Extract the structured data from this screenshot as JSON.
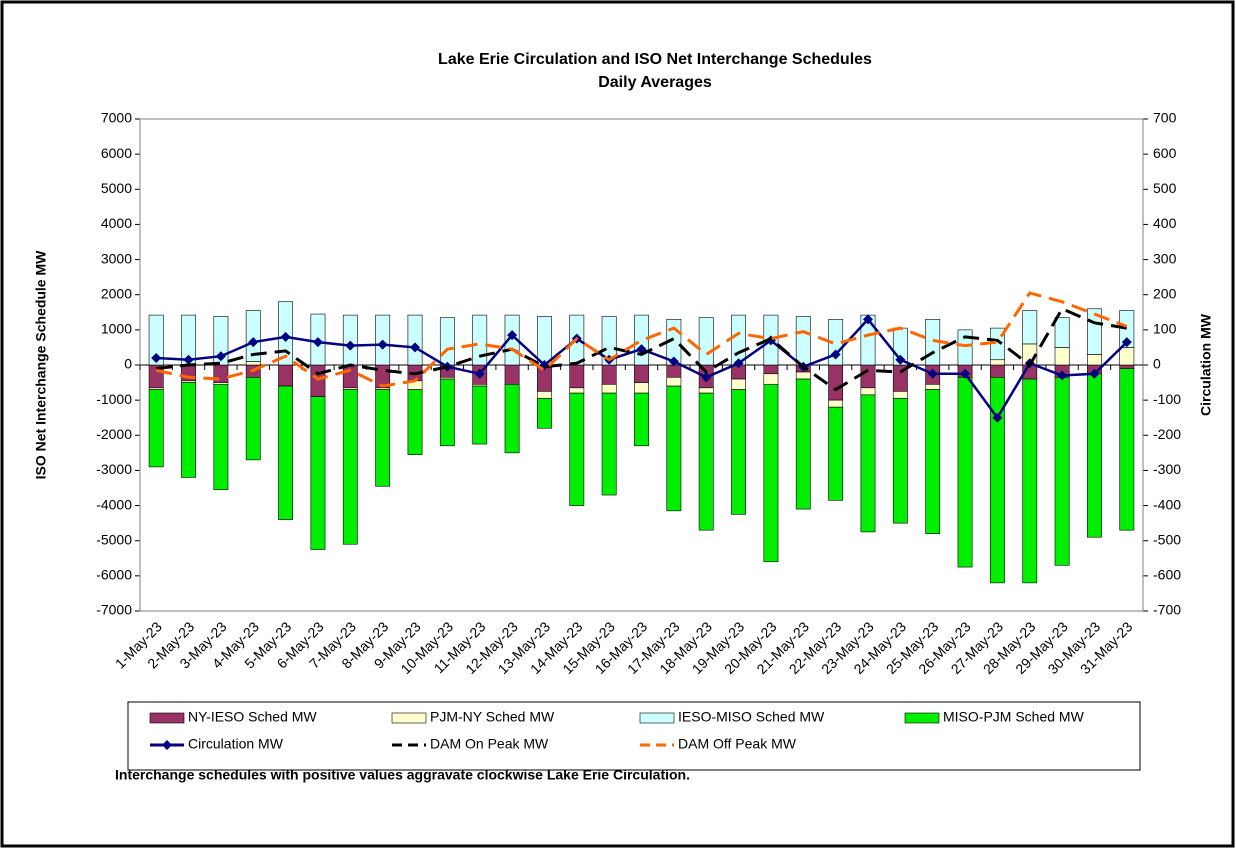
{
  "chart_data": {
    "type": "bar",
    "title": "Lake Erie Circulation and ISO Net Interchange Schedules",
    "subtitle": "Daily Averages",
    "y_label": "ISO Net Interchange Schedule MW",
    "y2_label": "Circulation MW",
    "note": "Interchange schedules with positive values aggravate clockwise Lake Erie Circulation.",
    "categories": [
      "1-May-23",
      "2-May-23",
      "3-May-23",
      "4-May-23",
      "5-May-23",
      "6-May-23",
      "7-May-23",
      "8-May-23",
      "9-May-23",
      "10-May-23",
      "11-May-23",
      "12-May-23",
      "13-May-23",
      "14-May-23",
      "15-May-23",
      "16-May-23",
      "17-May-23",
      "18-May-23",
      "19-May-23",
      "20-May-23",
      "21-May-23",
      "22-May-23",
      "23-May-23",
      "24-May-23",
      "25-May-23",
      "26-May-23",
      "27-May-23",
      "28-May-23",
      "29-May-23",
      "30-May-23",
      "31-May-23"
    ],
    "ylim": [
      -7000,
      7000
    ],
    "yticks": [
      -7000,
      -6000,
      -5000,
      -4000,
      -3000,
      -2000,
      -1000,
      0,
      1000,
      2000,
      3000,
      4000,
      5000,
      6000,
      7000
    ],
    "y2lim": [
      -700,
      700
    ],
    "y2ticks": [
      -700,
      -600,
      -500,
      -400,
      -300,
      -200,
      -100,
      0,
      100,
      200,
      300,
      400,
      500,
      600,
      700
    ],
    "stacked": true,
    "series": [
      {
        "name": "NY-IESO Sched MW",
        "color": "#993366",
        "values": [
          -650,
          -450,
          -500,
          -350,
          -600,
          -900,
          -650,
          -650,
          -450,
          -350,
          -550,
          -550,
          -750,
          -650,
          -550,
          -500,
          -350,
          -650,
          -400,
          -250,
          -200,
          -1000,
          -650,
          -750,
          -550,
          -350,
          -350,
          -400,
          -350,
          -250,
          -100
        ]
      },
      {
        "name": "PJM-NY Sched MW",
        "color": "#ffffcc",
        "values": [
          -50,
          -50,
          -50,
          100,
          0,
          0,
          -50,
          -50,
          -250,
          -50,
          -50,
          0,
          -200,
          -150,
          -250,
          -300,
          -250,
          -150,
          -300,
          -300,
          -200,
          -200,
          -200,
          -200,
          -150,
          0,
          150,
          600,
          500,
          300,
          500
        ]
      },
      {
        "name": "IESO-MISO Sched MW",
        "color": "#ccffff",
        "values": [
          1420,
          1420,
          1380,
          1450,
          1800,
          1450,
          1420,
          1420,
          1420,
          1350,
          1420,
          1420,
          1380,
          1420,
          1380,
          1420,
          1300,
          1350,
          1420,
          1420,
          1380,
          1300,
          1420,
          1050,
          1300,
          1000,
          900,
          950,
          850,
          1300,
          1050
        ]
      },
      {
        "name": "MISO-PJM Sched MW",
        "color": "#00ee00",
        "values": [
          -2200,
          -2700,
          -3000,
          -2350,
          -3800,
          -4350,
          -4400,
          -2750,
          -1850,
          -1900,
          -1650,
          -1950,
          -850,
          -3200,
          -2900,
          -1500,
          -3550,
          -3900,
          -3550,
          -5050,
          -3700,
          -2650,
          -3900,
          -3550,
          -4100,
          -5400,
          -5850,
          -5800,
          -5350,
          -4650,
          -4600
        ]
      },
      {
        "name": "Circulation MW",
        "type": "line",
        "axis": "y2",
        "color": "#000080",
        "marker": "diamond",
        "values": [
          20,
          15,
          25,
          65,
          80,
          65,
          55,
          58,
          50,
          -5,
          -25,
          85,
          0,
          75,
          15,
          45,
          10,
          -35,
          5,
          70,
          -5,
          30,
          130,
          15,
          -25,
          -25,
          -150,
          5,
          -30,
          -25,
          65
        ]
      },
      {
        "name": "DAM On Peak MW",
        "type": "line",
        "axis": "y2",
        "color": "#000000",
        "dash": true,
        "values": [
          -10,
          0,
          5,
          30,
          40,
          -25,
          0,
          -15,
          -25,
          -5,
          25,
          45,
          -5,
          5,
          50,
          30,
          75,
          -20,
          35,
          75,
          -5,
          -70,
          -15,
          -20,
          35,
          80,
          70,
          0,
          160,
          120,
          105
        ]
      },
      {
        "name": "DAM Off Peak MW",
        "type": "line",
        "axis": "y2",
        "color": "#ff6600",
        "dash": true,
        "values": [
          -15,
          -35,
          -40,
          -15,
          25,
          -40,
          -15,
          -60,
          -45,
          45,
          60,
          45,
          -15,
          75,
          15,
          70,
          105,
          30,
          90,
          75,
          95,
          60,
          85,
          105,
          70,
          55,
          65,
          205,
          180,
          145,
          110
        ]
      }
    ]
  }
}
